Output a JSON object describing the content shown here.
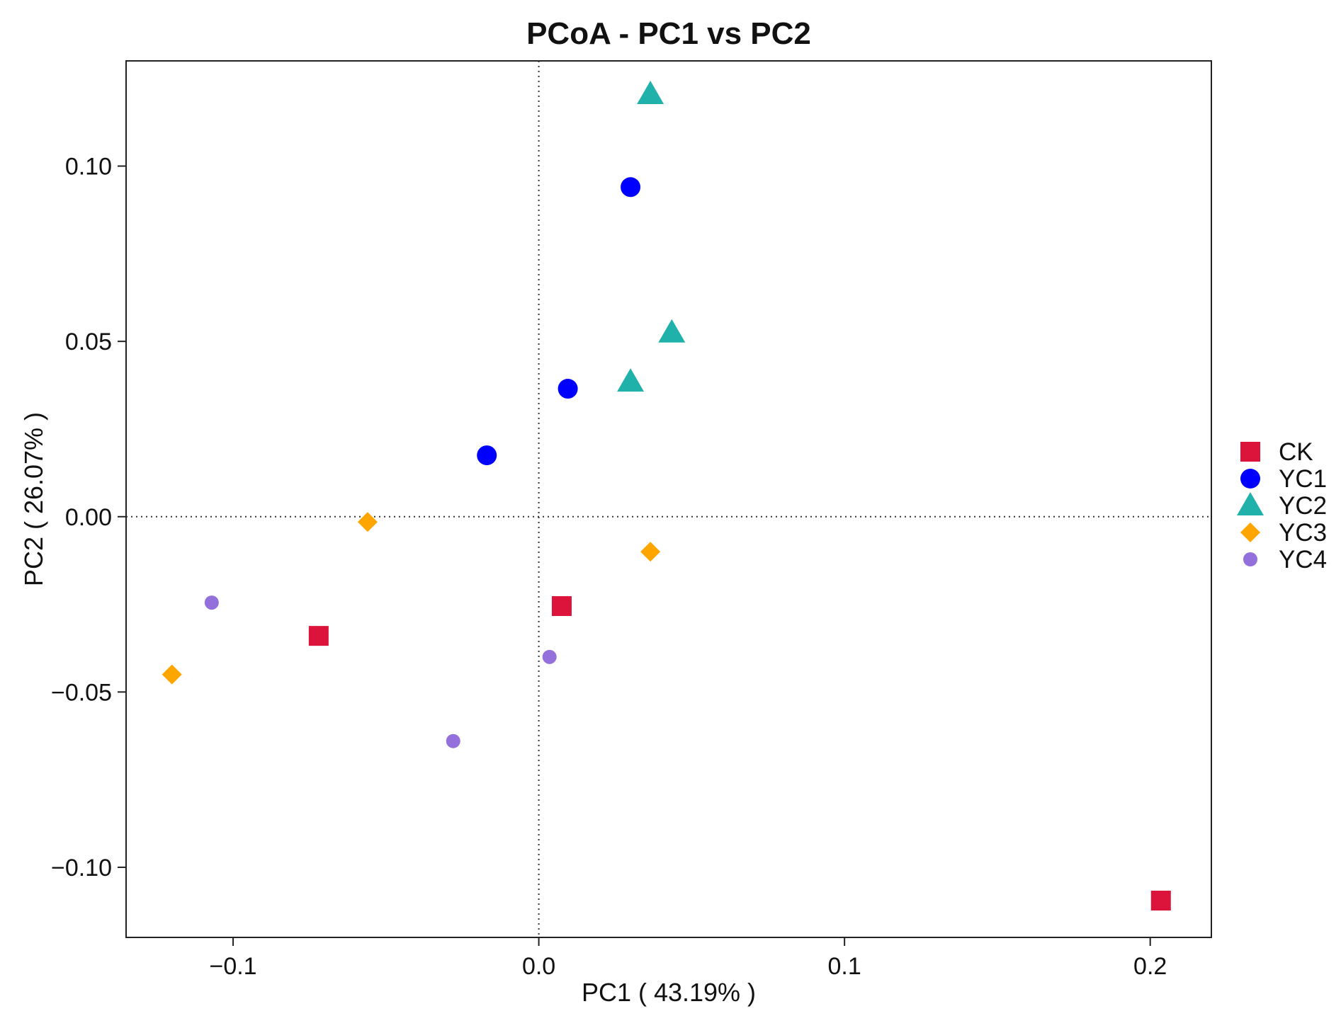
{
  "chart_data": {
    "type": "scatter",
    "title": "PCoA - PC1 vs PC2",
    "xlabel": "PC1 ( 43.19% )",
    "ylabel": "PC2 ( 26.07% )",
    "xlim": [
      -0.135,
      0.22
    ],
    "ylim": [
      -0.12,
      0.13
    ],
    "x_ticks": [
      {
        "value": -0.1,
        "label": "−0.1"
      },
      {
        "value": 0.0,
        "label": "0.0"
      },
      {
        "value": 0.1,
        "label": "0.1"
      },
      {
        "value": 0.2,
        "label": "0.2"
      }
    ],
    "y_ticks": [
      {
        "value": -0.1,
        "label": "−0.10"
      },
      {
        "value": -0.05,
        "label": "−0.05"
      },
      {
        "value": 0.0,
        "label": "0.00"
      },
      {
        "value": 0.05,
        "label": "0.05"
      },
      {
        "value": 0.1,
        "label": "0.10"
      }
    ],
    "reference_lines": {
      "x": 0,
      "y": 0,
      "style": "dotted"
    },
    "grid": false,
    "legend_position": "right",
    "series": [
      {
        "name": "CK",
        "shape": "square",
        "color": "#DC143C",
        "points": [
          [
            -0.072,
            -0.034
          ],
          [
            0.0075,
            -0.0255
          ],
          [
            0.2035,
            -0.1095
          ]
        ]
      },
      {
        "name": "YC1",
        "shape": "circle",
        "color": "#0000FF",
        "points": [
          [
            0.03,
            0.094
          ],
          [
            0.0095,
            0.0365
          ],
          [
            -0.017,
            0.0175
          ]
        ]
      },
      {
        "name": "YC2",
        "shape": "triangle",
        "color": "#20B2AA",
        "points": [
          [
            0.0365,
            0.1205
          ],
          [
            0.0435,
            0.0525
          ],
          [
            0.03,
            0.0385
          ]
        ]
      },
      {
        "name": "YC3",
        "shape": "diamond",
        "color": "#FFA500",
        "points": [
          [
            -0.056,
            -0.0015
          ],
          [
            0.0365,
            -0.01
          ],
          [
            -0.12,
            -0.045
          ]
        ]
      },
      {
        "name": "YC4",
        "shape": "small-circle",
        "color": "#9370DB",
        "points": [
          [
            -0.107,
            -0.0245
          ],
          [
            0.0035,
            -0.04
          ],
          [
            -0.028,
            -0.064
          ]
        ]
      }
    ]
  }
}
